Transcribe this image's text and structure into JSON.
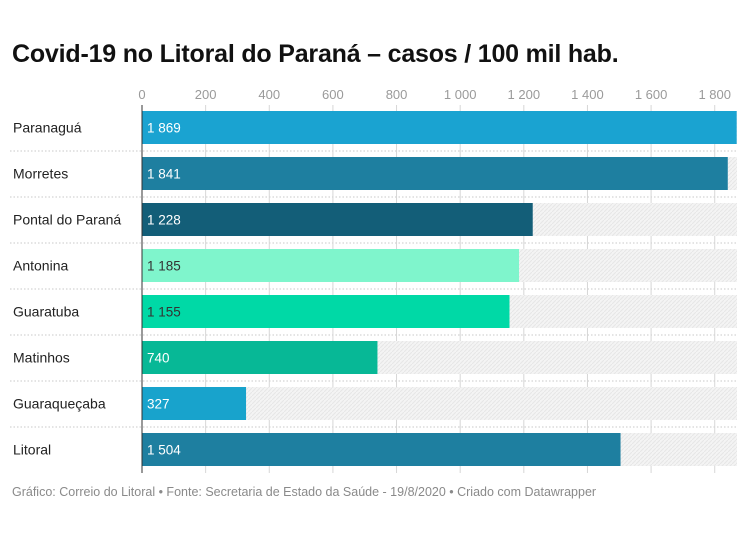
{
  "title": "Covid-19 no Litoral do Paraná – casos / 100 mil hab.",
  "footer": "Gráfico: Correio do Litoral • Fonte: Secretaria de Estado da Saúde - 19/8/2020 • Criado com Datawrapper",
  "chart_data": {
    "type": "bar",
    "orientation": "horizontal",
    "title": "Covid-19 no Litoral do Paraná – casos / 100 mil hab.",
    "categories": [
      "Paranaguá",
      "Morretes",
      "Pontal do Paraná",
      "Antonina",
      "Guaratuba",
      "Matinhos",
      "Guaraqueçaba",
      "Litoral"
    ],
    "values": [
      1869,
      1841,
      1228,
      1185,
      1155,
      740,
      327,
      1504
    ],
    "value_labels": [
      "1 869",
      "1 841",
      "1 228",
      "1 185",
      "1 155",
      "740",
      "327",
      "1 504"
    ],
    "colors": [
      "#1aa3d1",
      "#1e7fa0",
      "#135e78",
      "#7ff5cc",
      "#00d9a6",
      "#07b896",
      "#18a3cc",
      "#1e7fa0"
    ],
    "label_colors": [
      "#ffffff",
      "#ffffff",
      "#ffffff",
      "#333333",
      "#333333",
      "#ffffff",
      "#ffffff",
      "#ffffff"
    ],
    "xlim": [
      0,
      1870
    ],
    "ticks": [
      0,
      200,
      400,
      600,
      800,
      1000,
      1200,
      1400,
      1600,
      1800
    ],
    "tick_labels": [
      "0",
      "200",
      "400",
      "600",
      "800",
      "1 000",
      "1 200",
      "1 400",
      "1 600",
      "1 800"
    ],
    "grid": true,
    "xlabel": "",
    "ylabel": ""
  }
}
